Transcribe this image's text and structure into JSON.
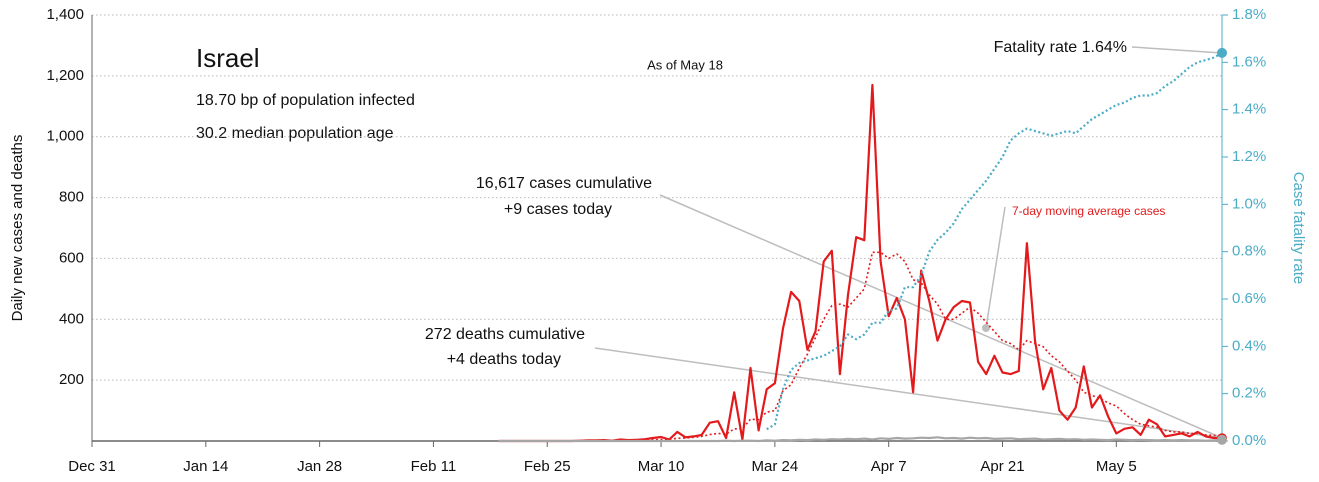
{
  "chart_data": {
    "type": "line",
    "title": "Israel",
    "subtitle": [
      "18.70 bp of population infected",
      "30.2 median population age"
    ],
    "date_note": "As of May 18",
    "annotations": {
      "cases": [
        "16,617 cases cumulative",
        "+9 cases today"
      ],
      "deaths": [
        "272 deaths cumulative",
        "+4 deaths today"
      ],
      "fatality": "Fatality rate 1.64%",
      "average": "7-day moving average cases"
    },
    "ylabel": "Daily new cases and deaths",
    "y2label": "Case fatality rate",
    "xlim": [
      0,
      139
    ],
    "xticks": [
      {
        "value": 0,
        "label": "Dec 31"
      },
      {
        "value": 14,
        "label": "Jan 14"
      },
      {
        "value": 28,
        "label": "Jan 28"
      },
      {
        "value": 42,
        "label": "Feb 11"
      },
      {
        "value": 56,
        "label": "Feb 25"
      },
      {
        "value": 70,
        "label": "Mar 10"
      },
      {
        "value": 84,
        "label": "Mar 24"
      },
      {
        "value": 98,
        "label": "Apr 7"
      },
      {
        "value": 112,
        "label": "Apr 21"
      },
      {
        "value": 126,
        "label": "May 5"
      }
    ],
    "ylim": [
      0,
      1400
    ],
    "yticks": [
      200,
      400,
      600,
      800,
      {
        "value": 1000,
        "label": "1,000"
      },
      {
        "value": 1200,
        "label": "1,200"
      },
      {
        "value": 1400,
        "label": "1,400"
      }
    ],
    "y2lim": [
      0,
      1.8
    ],
    "y2ticks": [
      {
        "value": 0,
        "label": "0.0%"
      },
      {
        "value": 0.2,
        "label": "0.2%"
      },
      {
        "value": 0.4,
        "label": "0.4%"
      },
      {
        "value": 0.6,
        "label": "0.6%"
      },
      {
        "value": 0.8,
        "label": "0.8%"
      },
      {
        "value": 1.0,
        "label": "1.0%"
      },
      {
        "value": 1.2,
        "label": "1.2%"
      },
      {
        "value": 1.4,
        "label": "1.4%"
      },
      {
        "value": 1.6,
        "label": "1.6%"
      },
      {
        "value": 1.8,
        "label": "1.8%"
      }
    ],
    "grid": true,
    "x": [
      50,
      51,
      52,
      53,
      54,
      55,
      56,
      57,
      58,
      59,
      60,
      61,
      62,
      63,
      64,
      65,
      66,
      67,
      68,
      69,
      70,
      71,
      72,
      73,
      74,
      75,
      76,
      77,
      78,
      79,
      80,
      81,
      82,
      83,
      84,
      85,
      86,
      87,
      88,
      89,
      90,
      91,
      92,
      93,
      94,
      95,
      96,
      97,
      98,
      99,
      100,
      101,
      102,
      103,
      104,
      105,
      106,
      107,
      108,
      109,
      110,
      111,
      112,
      113,
      114,
      115,
      116,
      117,
      118,
      119,
      120,
      121,
      122,
      123,
      124,
      125,
      126,
      127,
      128,
      129,
      130,
      131,
      132,
      133,
      134,
      135,
      136,
      137,
      138,
      139
    ],
    "series": [
      {
        "name": "Daily new cases",
        "color": "#e31a1c",
        "style": "solid",
        "values": [
          0,
          0,
          0,
          0,
          0,
          0,
          0,
          0,
          0,
          0,
          1,
          2,
          2,
          3,
          1,
          5,
          3,
          4,
          6,
          10,
          13,
          5,
          30,
          12,
          15,
          20,
          60,
          65,
          10,
          160,
          5,
          240,
          35,
          170,
          190,
          370,
          490,
          460,
          300,
          360,
          590,
          625,
          220,
          480,
          670,
          660,
          1170,
          590,
          410,
          470,
          400,
          160,
          560,
          460,
          330,
          400,
          440,
          460,
          455,
          260,
          220,
          280,
          225,
          220,
          230,
          650,
          330,
          170,
          240,
          100,
          70,
          110,
          245,
          110,
          150,
          80,
          25,
          40,
          45,
          20,
          70,
          55,
          15,
          20,
          25,
          15,
          30,
          15,
          10,
          9
        ]
      },
      {
        "name": "7-day moving average cases",
        "color": "#e31a1c",
        "style": "dotted",
        "values": [
          0,
          0,
          0,
          0,
          0,
          0,
          0,
          0,
          0,
          0,
          0,
          1,
          1,
          1,
          1,
          2,
          2,
          3,
          3,
          4,
          5,
          6,
          9,
          10,
          12,
          15,
          21,
          25,
          22,
          40,
          40,
          72,
          70,
          95,
          100,
          165,
          185,
          240,
          285,
          340,
          400,
          445,
          450,
          440,
          470,
          500,
          620,
          620,
          600,
          615,
          590,
          530,
          520,
          480,
          450,
          400,
          400,
          420,
          440,
          420,
          390,
          360,
          330,
          320,
          300,
          330,
          320,
          310,
          280,
          260,
          230,
          200,
          160,
          150,
          140,
          125,
          115,
          90,
          70,
          55,
          50,
          45,
          35,
          30,
          30,
          25,
          25,
          20,
          18,
          17
        ]
      },
      {
        "name": "Daily new deaths",
        "color": "#a6a6a6",
        "style": "solid",
        "values": [
          0,
          0,
          0,
          0,
          0,
          0,
          0,
          0,
          0,
          0,
          0,
          0,
          0,
          0,
          0,
          0,
          0,
          0,
          0,
          0,
          0,
          0,
          0,
          0,
          0,
          0,
          0,
          0,
          1,
          0,
          1,
          1,
          0,
          2,
          1,
          3,
          2,
          4,
          3,
          5,
          4,
          6,
          5,
          7,
          6,
          8,
          5,
          9,
          7,
          10,
          8,
          9,
          11,
          10,
          12,
          9,
          10,
          8,
          11,
          9,
          10,
          7,
          8,
          9,
          6,
          7,
          8,
          5,
          6,
          7,
          5,
          6,
          4,
          5,
          4,
          3,
          5,
          4,
          3,
          4,
          3,
          2,
          3,
          2,
          3,
          2,
          2,
          1,
          2,
          4
        ]
      },
      {
        "name": "Case fatality rate",
        "color": "#4bacc6",
        "style": "dotted",
        "axis": "y2",
        "values": [
          null,
          null,
          null,
          null,
          null,
          null,
          null,
          null,
          null,
          null,
          null,
          null,
          null,
          null,
          null,
          null,
          null,
          null,
          null,
          null,
          null,
          null,
          null,
          null,
          null,
          null,
          null,
          null,
          null,
          null,
          null,
          null,
          null,
          0.05,
          0.07,
          0.22,
          0.3,
          0.33,
          0.34,
          0.35,
          0.36,
          0.38,
          0.4,
          0.45,
          0.43,
          0.45,
          0.5,
          0.5,
          0.55,
          0.56,
          0.65,
          0.65,
          0.7,
          0.8,
          0.85,
          0.88,
          0.92,
          0.98,
          1.02,
          1.06,
          1.1,
          1.15,
          1.2,
          1.27,
          1.3,
          1.32,
          1.31,
          1.3,
          1.29,
          1.3,
          1.31,
          1.3,
          1.33,
          1.36,
          1.38,
          1.4,
          1.42,
          1.43,
          1.45,
          1.46,
          1.46,
          1.47,
          1.5,
          1.52,
          1.55,
          1.58,
          1.6,
          1.61,
          1.62,
          1.64
        ]
      }
    ]
  }
}
